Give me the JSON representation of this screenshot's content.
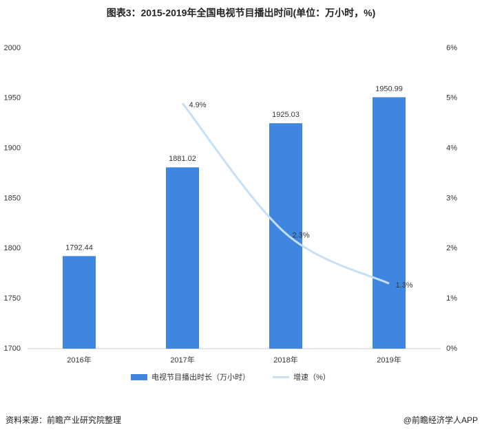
{
  "chart_data": {
    "type": "bar_line",
    "title": "图表3：2015-2019年全国电视节目播出时间(单位：万小时，%)",
    "categories": [
      "2016年",
      "2017年",
      "2018年",
      "2019年"
    ],
    "series": [
      {
        "name": "电视节目播出时长（万小时）",
        "type": "bar",
        "color": "#3f86e0",
        "values": [
          1792.44,
          1881.02,
          1925.03,
          1950.99
        ]
      },
      {
        "name": "增速（%）",
        "type": "line",
        "axis": "y2",
        "color": "#c6e0f8",
        "values": [
          null,
          4.9,
          2.3,
          1.3
        ],
        "value_labels": [
          null,
          "4.9%",
          "2.3%",
          "1.3%"
        ]
      }
    ],
    "ylim": [
      1700,
      2000
    ],
    "yticks": [
      1700,
      1750,
      1800,
      1850,
      1900,
      1950,
      2000
    ],
    "y2lim": [
      0,
      6
    ],
    "y2ticks": [
      {
        "value": 0,
        "label": "0%"
      },
      {
        "value": 1,
        "label": "1%"
      },
      {
        "value": 2,
        "label": "2%"
      },
      {
        "value": 3,
        "label": "3%"
      },
      {
        "value": 4,
        "label": "4%"
      },
      {
        "value": 5,
        "label": "5%"
      },
      {
        "value": 6,
        "label": "6%"
      }
    ],
    "grid": false,
    "legend": "bottom",
    "source": "资料来源：前瞻产业研究院整理",
    "brand": "@前瞻经济学人APP"
  }
}
